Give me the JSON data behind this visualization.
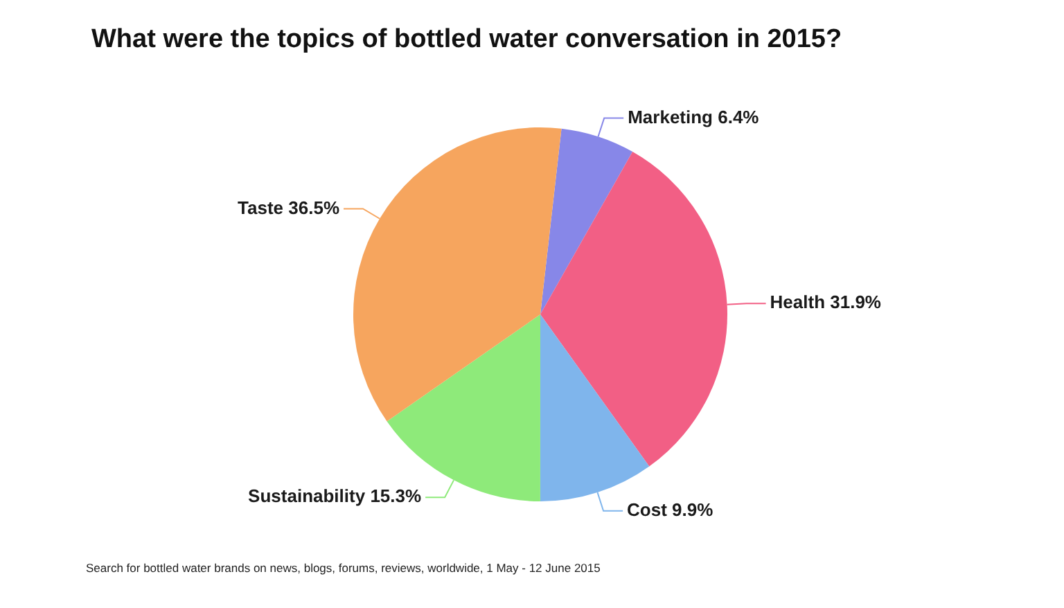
{
  "chart_data": {
    "type": "pie",
    "title": "What were the topics of bottled water conversation in 2015?",
    "categories": [
      "Marketing",
      "Health",
      "Cost",
      "Sustainability",
      "Taste"
    ],
    "values": [
      6.4,
      31.9,
      9.9,
      15.3,
      36.5
    ],
    "value_labels": [
      "6.4%",
      "31.9%",
      "9.9%",
      "15.3%",
      "36.5%"
    ],
    "colors": [
      "#8787e8",
      "#f25f85",
      "#7fb5ec",
      "#8eea7a",
      "#f6a55e"
    ],
    "legend": false,
    "annotations": [
      "Search for bottled water brands on news, blogs, forums, reviews, worldwide, 1 May - 12 June 2015"
    ]
  }
}
